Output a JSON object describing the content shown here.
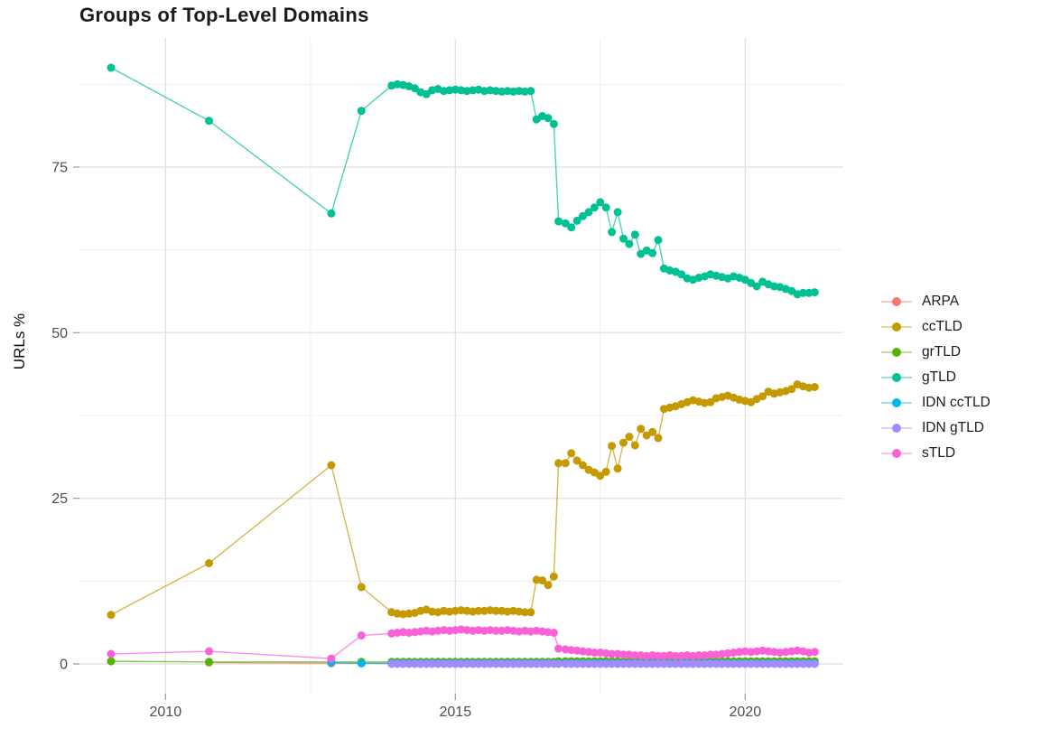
{
  "title": "Groups of Top-Level Domains",
  "y_axis": {
    "label": "URLs %",
    "tick_labels": [
      "0",
      "25",
      "50",
      "75"
    ]
  },
  "x_axis": {
    "tick_labels": [
      "2010",
      "2015",
      "2020"
    ]
  },
  "legend": {
    "position": "right",
    "items": [
      "ARPA",
      "ccTLD",
      "grTLD",
      "gTLD",
      "IDN ccTLD",
      "IDN gTLD",
      "sTLD"
    ]
  },
  "chart_data": {
    "type": "line",
    "title": "Groups of Top-Level Domains",
    "xlabel": "",
    "ylabel": "URLs %",
    "xlim": [
      2008.5,
      2021.7
    ],
    "ylim": [
      -4.5,
      94.5
    ],
    "y_major_ticks": [
      0,
      25,
      50,
      75
    ],
    "y_minor_ticks": [
      12.5,
      37.5,
      62.5,
      87.5
    ],
    "x_major_ticks": [
      2010,
      2015,
      2020
    ],
    "x_minor_ticks": [
      2012.5,
      2017.5
    ],
    "grid": true,
    "legend_position": "right",
    "x": [
      2009.06,
      2010.75,
      2012.86,
      2013.38,
      2013.9,
      2014.0,
      2014.1,
      2014.2,
      2014.3,
      2014.4,
      2014.5,
      2014.6,
      2014.7,
      2014.8,
      2014.9,
      2015.0,
      2015.1,
      2015.2,
      2015.3,
      2015.4,
      2015.5,
      2015.6,
      2015.7,
      2015.8,
      2015.9,
      2016.0,
      2016.1,
      2016.2,
      2016.3,
      2016.4,
      2016.5,
      2016.6,
      2016.7,
      2016.78,
      2016.9,
      2017.0,
      2017.1,
      2017.2,
      2017.3,
      2017.4,
      2017.5,
      2017.6,
      2017.7,
      2017.8,
      2017.9,
      2018.0,
      2018.1,
      2018.2,
      2018.3,
      2018.4,
      2018.5,
      2018.6,
      2018.7,
      2018.8,
      2018.9,
      2019.0,
      2019.1,
      2019.2,
      2019.3,
      2019.4,
      2019.5,
      2019.6,
      2019.7,
      2019.8,
      2019.9,
      2020.0,
      2020.1,
      2020.2,
      2020.3,
      2020.4,
      2020.5,
      2020.6,
      2020.7,
      2020.8,
      2020.9,
      2021.0,
      2021.1,
      2021.2
    ],
    "series": [
      {
        "name": "ARPA",
        "color": "#F8766D",
        "values": [
          null,
          0.2,
          0.1,
          0.1,
          0.05,
          0.05,
          0.05,
          0.05,
          0.05,
          0.05,
          0.05,
          0.05,
          0.05,
          0.05,
          0.05,
          0.05,
          0.05,
          0.05,
          0.05,
          0.05,
          0.05,
          0.05,
          0.05,
          0.05,
          0.05,
          0.05,
          0.05,
          0.05,
          0.05,
          0.05,
          0.05,
          0.05,
          0.05,
          0.05,
          0.05,
          0.05,
          0.05,
          0.05,
          0.05,
          0.05,
          0.05,
          0.05,
          0.05,
          0.05,
          0.05,
          0.05,
          0.05,
          0.05,
          0.05,
          0.05,
          0.05,
          0.05,
          0.05,
          0.05,
          0.05,
          0.05,
          0.05,
          0.05,
          0.05,
          0.05,
          0.05,
          0.05,
          0.05,
          0.05,
          0.05,
          0.05,
          0.05,
          0.05,
          0.05,
          0.05,
          0.05,
          0.05,
          0.05,
          0.05,
          0.05,
          0.05,
          0.05,
          0.05
        ]
      },
      {
        "name": "ccTLD",
        "color": "#C49A00",
        "values": [
          7.4,
          15.2,
          30.0,
          11.6,
          7.8,
          7.6,
          7.5,
          7.6,
          7.7,
          8.0,
          8.2,
          7.9,
          7.8,
          8.0,
          7.9,
          8.0,
          8.1,
          8.0,
          7.9,
          8.0,
          8.0,
          8.1,
          8.0,
          8.0,
          7.9,
          8.0,
          7.9,
          7.8,
          7.8,
          12.7,
          12.6,
          11.9,
          13.2,
          30.3,
          30.3,
          31.8,
          30.7,
          30.0,
          29.3,
          28.9,
          28.4,
          29.0,
          32.9,
          29.5,
          33.4,
          34.3,
          33.0,
          35.5,
          34.5,
          35.0,
          34.1,
          38.5,
          38.7,
          38.9,
          39.2,
          39.5,
          39.8,
          39.6,
          39.4,
          39.5,
          40.1,
          40.3,
          40.5,
          40.2,
          39.9,
          39.7,
          39.5,
          40.0,
          40.4,
          41.1,
          40.8,
          41.0,
          41.2,
          41.5,
          42.2,
          41.9,
          41.7,
          41.8
        ]
      },
      {
        "name": "grTLD",
        "color": "#53B400",
        "values": [
          0.4,
          0.3,
          0.3,
          0.3,
          0.3,
          0.3,
          0.3,
          0.3,
          0.3,
          0.3,
          0.3,
          0.3,
          0.3,
          0.3,
          0.3,
          0.3,
          0.3,
          0.3,
          0.3,
          0.3,
          0.3,
          0.3,
          0.3,
          0.3,
          0.3,
          0.3,
          0.3,
          0.3,
          0.3,
          0.3,
          0.3,
          0.3,
          0.3,
          0.4,
          0.4,
          0.4,
          0.4,
          0.4,
          0.4,
          0.4,
          0.4,
          0.4,
          0.4,
          0.4,
          0.4,
          0.4,
          0.4,
          0.4,
          0.4,
          0.4,
          0.4,
          0.4,
          0.4,
          0.4,
          0.4,
          0.4,
          0.4,
          0.4,
          0.4,
          0.4,
          0.4,
          0.4,
          0.4,
          0.4,
          0.4,
          0.4,
          0.4,
          0.4,
          0.4,
          0.4,
          0.4,
          0.4,
          0.4,
          0.4,
          0.4,
          0.4,
          0.4,
          0.4
        ]
      },
      {
        "name": "gTLD",
        "color": "#00C094",
        "values": [
          90,
          82,
          68,
          83.5,
          87.3,
          87.5,
          87.4,
          87.2,
          86.9,
          86.3,
          86.0,
          86.6,
          86.8,
          86.5,
          86.6,
          86.7,
          86.6,
          86.5,
          86.6,
          86.7,
          86.5,
          86.6,
          86.5,
          86.4,
          86.5,
          86.4,
          86.5,
          86.4,
          86.5,
          82.2,
          82.7,
          82.4,
          81.5,
          66.8,
          66.5,
          65.9,
          66.9,
          67.6,
          68.2,
          68.9,
          69.7,
          68.9,
          65.2,
          68.2,
          64.2,
          63.4,
          64.8,
          61.9,
          62.4,
          62.0,
          64.0,
          59.7,
          59.4,
          59.2,
          58.8,
          58.2,
          58.0,
          58.3,
          58.5,
          58.8,
          58.6,
          58.4,
          58.2,
          58.5,
          58.3,
          58.0,
          57.5,
          57.0,
          57.7,
          57.3,
          57.0,
          56.9,
          56.6,
          56.3,
          55.8,
          56.0,
          56.0,
          56.1
        ]
      },
      {
        "name": "IDN ccTLD",
        "color": "#00B6EB",
        "values": [
          null,
          null,
          0.2,
          0.1,
          0.1,
          0.1,
          0.1,
          0.1,
          0.1,
          0.1,
          0.1,
          0.1,
          0.1,
          0.1,
          0.1,
          0.1,
          0.1,
          0.1,
          0.1,
          0.1,
          0.1,
          0.1,
          0.1,
          0.1,
          0.1,
          0.1,
          0.1,
          0.1,
          0.1,
          0.1,
          0.1,
          0.1,
          0.1,
          0.1,
          0.1,
          0.1,
          0.1,
          0.1,
          0.1,
          0.1,
          0.1,
          0.1,
          0.1,
          0.1,
          0.1,
          0.1,
          0.1,
          0.1,
          0.1,
          0.1,
          0.1,
          0.1,
          0.1,
          0.1,
          0.1,
          0.1,
          0.1,
          0.1,
          0.1,
          0.1,
          0.1,
          0.1,
          0.1,
          0.1,
          0.1,
          0.1,
          0.1,
          0.1,
          0.1,
          0.1,
          0.1,
          0.1,
          0.1,
          0.1,
          0.1,
          0.1,
          0.1,
          0.1
        ]
      },
      {
        "name": "IDN gTLD",
        "color": "#A58AFF",
        "values": [
          null,
          null,
          null,
          null,
          0,
          0,
          0,
          0,
          0,
          0,
          0,
          0,
          0,
          0,
          0,
          0,
          0,
          0,
          0,
          0,
          0,
          0,
          0,
          0,
          0,
          0,
          0,
          0,
          0,
          0,
          0,
          0,
          0,
          0,
          0,
          0,
          0,
          0,
          0,
          0,
          0,
          0,
          0,
          0,
          0,
          0,
          0,
          0,
          0,
          0,
          0,
          0,
          0,
          0,
          0,
          0,
          0,
          0,
          0,
          0,
          0,
          0,
          0,
          0,
          0,
          0,
          0,
          0,
          0,
          0,
          0,
          0,
          0,
          0,
          0,
          0,
          0,
          0
        ]
      },
      {
        "name": "sTLD",
        "color": "#FB61D7",
        "values": [
          1.5,
          1.9,
          0.8,
          4.3,
          4.6,
          4.7,
          4.8,
          4.7,
          4.8,
          4.9,
          5.0,
          4.9,
          5.0,
          5.1,
          5.0,
          5.1,
          5.2,
          5.1,
          5.0,
          5.1,
          5.0,
          5.1,
          5.0,
          5.0,
          5.1,
          5.0,
          4.9,
          5.0,
          4.9,
          5.0,
          4.9,
          4.8,
          4.7,
          2.3,
          2.2,
          2.1,
          2.0,
          1.9,
          1.8,
          1.7,
          1.7,
          1.6,
          1.5,
          1.5,
          1.4,
          1.4,
          1.3,
          1.3,
          1.2,
          1.3,
          1.2,
          1.2,
          1.3,
          1.2,
          1.2,
          1.3,
          1.2,
          1.3,
          1.3,
          1.4,
          1.4,
          1.5,
          1.6,
          1.7,
          1.8,
          1.9,
          1.8,
          1.9,
          2.0,
          1.9,
          1.8,
          1.7,
          1.8,
          1.9,
          2.0,
          1.9,
          1.7,
          1.8
        ]
      }
    ]
  }
}
